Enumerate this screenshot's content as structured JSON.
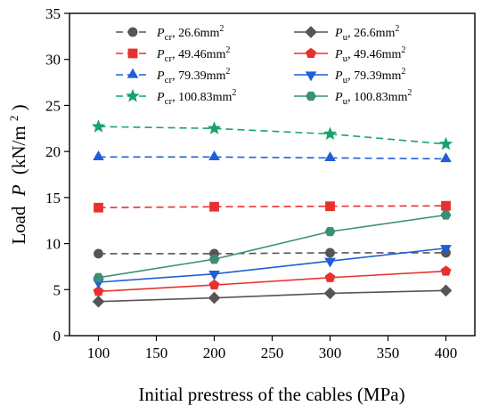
{
  "chart_data": {
    "type": "line",
    "xlabel": "Initial prestress of the cables (MPa)",
    "ylabel_main": "Load",
    "ylabel_var": "P",
    "ylabel_unit": "(kN/m",
    "ylabel_unit_sup": "2",
    "ylabel_unit_end": ")",
    "xlim": [
      75,
      425
    ],
    "ylim": [
      0,
      35
    ],
    "xticks": [
      100,
      150,
      200,
      250,
      300,
      350,
      400
    ],
    "yticks": [
      0,
      5,
      10,
      15,
      20,
      25,
      30,
      35
    ],
    "grid": false,
    "legend_position": "top",
    "x": [
      100,
      200,
      300,
      400
    ],
    "series": [
      {
        "name_main": "P",
        "name_sub": "cr",
        "name_value": ", 26.6mm",
        "name_sup": "2",
        "color": "#555555",
        "marker": "circle",
        "dash": true,
        "values": [
          8.9,
          8.9,
          9.0,
          9.0
        ]
      },
      {
        "name_main": "P",
        "name_sub": "u",
        "name_value": ", 26.6mm",
        "name_sup": "2",
        "color": "#555555",
        "marker": "diamond",
        "dash": false,
        "values": [
          3.7,
          4.1,
          4.6,
          4.9
        ]
      },
      {
        "name_main": "P",
        "name_sub": "cr",
        "name_value": ", 49.46mm",
        "name_sup": "2",
        "color": "#e8312f",
        "marker": "square",
        "dash": true,
        "values": [
          13.9,
          14.0,
          14.05,
          14.1
        ]
      },
      {
        "name_main": "P",
        "name_sub": "u",
        "name_value": ", 49.46mm",
        "name_sup": "2",
        "color": "#e8312f",
        "marker": "pentagon",
        "dash": false,
        "values": [
          4.8,
          5.5,
          6.3,
          7.0
        ]
      },
      {
        "name_main": "P",
        "name_sub": "cr",
        "name_value": ", 79.39mm",
        "name_sup": "2",
        "color": "#1f5fd6",
        "marker": "triangle-up",
        "dash": true,
        "values": [
          19.4,
          19.4,
          19.3,
          19.2
        ]
      },
      {
        "name_main": "P",
        "name_sub": "u",
        "name_value": ", 79.39mm",
        "name_sup": "2",
        "color": "#1f5fd6",
        "marker": "triangle-down",
        "dash": false,
        "values": [
          5.8,
          6.7,
          8.1,
          9.5
        ]
      },
      {
        "name_main": "P",
        "name_sub": "cr",
        "name_value": ", 100.83mm",
        "name_sup": "2",
        "color": "#16a36a",
        "marker": "star",
        "dash": true,
        "values": [
          22.7,
          22.5,
          21.9,
          20.8
        ]
      },
      {
        "name_main": "P",
        "name_sub": "u",
        "name_value": ", 100.83mm",
        "name_sup": "2",
        "color": "#3d8f73",
        "marker": "hexagon",
        "dash": false,
        "values": [
          6.3,
          8.3,
          11.3,
          13.1
        ]
      }
    ]
  }
}
